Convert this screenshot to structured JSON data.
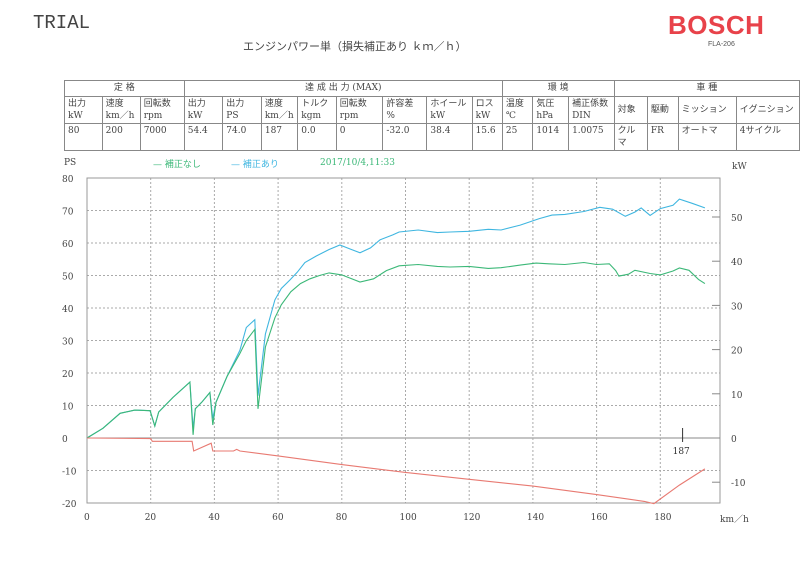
{
  "header": {
    "watermark": "TRIAL",
    "title": "エンジンパワー単（損失補正あり ｋｍ／ｈ）",
    "brand": "BOSCH",
    "model": "FLA-206"
  },
  "spec_table": {
    "groups": [
      {
        "label": "定 格",
        "span": 3
      },
      {
        "label": "達 成 出 力 (MAX)",
        "span": 8
      },
      {
        "label": "環 境",
        "span": 3
      },
      {
        "label": "車 種",
        "span": 4
      }
    ],
    "headers": [
      [
        "出力",
        "kW"
      ],
      [
        "速度",
        "km／h"
      ],
      [
        "回転数",
        "rpm"
      ],
      [
        "出力",
        "kW"
      ],
      [
        "出力",
        "PS"
      ],
      [
        "速度",
        "km／h"
      ],
      [
        "トルク",
        "kgm"
      ],
      [
        "回転数",
        "rpm"
      ],
      [
        "許容差",
        "%"
      ],
      [
        "ホイール",
        "kW"
      ],
      [
        "ロス",
        "kW"
      ],
      [
        "温度",
        "℃"
      ],
      [
        "気圧",
        "hPa"
      ],
      [
        "補正係数",
        "DIN"
      ],
      [
        "対象",
        ""
      ],
      [
        "駆動",
        ""
      ],
      [
        "ミッション",
        ""
      ],
      [
        "イグニション",
        ""
      ]
    ],
    "values": [
      "80",
      "200",
      "7000",
      "54.4",
      "74.0",
      "187",
      "0.0",
      "0",
      "-32.0",
      "38.4",
      "15.6",
      "25",
      "1014",
      "1.0075",
      "クルマ",
      "FR",
      "オートマ",
      "4サイクル"
    ]
  },
  "chart_data": {
    "type": "line",
    "title": "",
    "timestamp": "2017/10/4,11:33",
    "xlabel": "km／h",
    "ylabel": "PS",
    "y2label": "kW",
    "xlim": [
      0,
      200
    ],
    "ylim": [
      -20,
      80
    ],
    "y2lim": [
      -14.7,
      58.8
    ],
    "xticks": [
      0,
      20,
      40,
      60,
      80,
      100,
      120,
      140,
      160,
      180
    ],
    "yticks": [
      80,
      70,
      60,
      50,
      40,
      30,
      20,
      10,
      0,
      -10,
      -20
    ],
    "y2ticks": [
      50,
      40,
      30,
      20,
      10,
      0,
      -10
    ],
    "grid": true,
    "legend": [
      {
        "name": "補正なし",
        "color": "#3cb878"
      },
      {
        "name": "補正あり",
        "color": "#3fb6e0"
      }
    ],
    "marker": {
      "x": 187,
      "label": "187"
    },
    "series": [
      {
        "name": "補正あり",
        "color": "#3fb6e0",
        "points": [
          [
            0,
            0
          ],
          [
            5,
            3
          ],
          [
            10.4,
            7.6
          ],
          [
            15,
            8.6
          ],
          [
            19.8,
            8.4
          ],
          [
            21.3,
            3.7
          ],
          [
            22.5,
            8
          ],
          [
            27,
            12.5
          ],
          [
            32.3,
            17.2
          ],
          [
            33.3,
            3
          ],
          [
            34,
            9
          ],
          [
            36,
            11
          ],
          [
            38.6,
            14
          ],
          [
            39.5,
            6
          ],
          [
            40.5,
            11
          ],
          [
            44,
            19
          ],
          [
            48,
            27
          ],
          [
            50,
            34
          ],
          [
            52.7,
            36.4
          ],
          [
            53.7,
            13
          ],
          [
            56,
            32
          ],
          [
            59,
            42.5
          ],
          [
            61,
            46
          ],
          [
            63.7,
            48.6
          ],
          [
            66,
            51
          ],
          [
            68.4,
            54
          ],
          [
            72,
            56
          ],
          [
            76,
            58
          ],
          [
            79.4,
            59.4
          ],
          [
            83,
            58
          ],
          [
            85.7,
            57
          ],
          [
            89,
            58.5
          ],
          [
            92,
            61
          ],
          [
            96,
            62.5
          ],
          [
            98,
            63.4
          ],
          [
            104,
            64
          ],
          [
            110,
            63.2
          ],
          [
            114,
            63.4
          ],
          [
            120,
            63.6
          ],
          [
            126,
            64.2
          ],
          [
            130,
            64
          ],
          [
            136,
            65.5
          ],
          [
            142,
            67.5
          ],
          [
            146,
            68.6
          ],
          [
            150,
            68.8
          ],
          [
            156,
            69.7
          ],
          [
            161,
            71
          ],
          [
            165,
            70.4
          ],
          [
            169,
            68.2
          ],
          [
            172,
            69.5
          ],
          [
            174,
            70.8
          ],
          [
            176.8,
            68.5
          ],
          [
            180,
            70.6
          ],
          [
            184,
            71.6
          ],
          [
            186,
            73.5
          ],
          [
            190,
            72.2
          ],
          [
            194,
            70.8
          ]
        ]
      },
      {
        "name": "補正なし",
        "color": "#3cb878",
        "points": [
          [
            0,
            0
          ],
          [
            5,
            3
          ],
          [
            10.4,
            7.6
          ],
          [
            15,
            8.6
          ],
          [
            19.8,
            8.4
          ],
          [
            21.3,
            3.7
          ],
          [
            22.5,
            8
          ],
          [
            27,
            12.5
          ],
          [
            32.3,
            17.2
          ],
          [
            33.3,
            1
          ],
          [
            34,
            9
          ],
          [
            36,
            11
          ],
          [
            38.6,
            14
          ],
          [
            39.5,
            4
          ],
          [
            40.5,
            11
          ],
          [
            44,
            19
          ],
          [
            48,
            26
          ],
          [
            50,
            30
          ],
          [
            52.7,
            33.4
          ],
          [
            53.7,
            9
          ],
          [
            56,
            28
          ],
          [
            59,
            37
          ],
          [
            61,
            41
          ],
          [
            64,
            45
          ],
          [
            67,
            47.5
          ],
          [
            70,
            49
          ],
          [
            73,
            50
          ],
          [
            76,
            50.8
          ],
          [
            80,
            50.2
          ],
          [
            85.7,
            48
          ],
          [
            90,
            49
          ],
          [
            94,
            51.5
          ],
          [
            98,
            53
          ],
          [
            104,
            53.4
          ],
          [
            110,
            52.8
          ],
          [
            114,
            52.6
          ],
          [
            120,
            52.8
          ],
          [
            126,
            52.2
          ],
          [
            130,
            52.4
          ],
          [
            136,
            53.2
          ],
          [
            141,
            53.8
          ],
          [
            145,
            53.6
          ],
          [
            150,
            53.4
          ],
          [
            156,
            54
          ],
          [
            160,
            53.4
          ],
          [
            164,
            53.6
          ],
          [
            166,
            51.5
          ],
          [
            167,
            49.8
          ],
          [
            170,
            50.4
          ],
          [
            172,
            51.6
          ],
          [
            176.8,
            50.6
          ],
          [
            180,
            50.2
          ],
          [
            184,
            51.4
          ],
          [
            186,
            52.3
          ],
          [
            189,
            51.6
          ],
          [
            192,
            48.8
          ],
          [
            194,
            47.5
          ]
        ]
      },
      {
        "name": "ロス",
        "color": "#e87a72",
        "points": [
          [
            0,
            0
          ],
          [
            20,
            -0.2
          ],
          [
            20.5,
            -1
          ],
          [
            33,
            -1
          ],
          [
            33.5,
            -4
          ],
          [
            39,
            -1.6
          ],
          [
            39.5,
            -4
          ],
          [
            46,
            -4
          ],
          [
            47,
            -3.5
          ],
          [
            48,
            -4
          ],
          [
            60,
            -5.5
          ],
          [
            80,
            -8.2
          ],
          [
            100,
            -10.6
          ],
          [
            120,
            -12.7
          ],
          [
            140,
            -14.8
          ],
          [
            160,
            -17.4
          ],
          [
            175,
            -19.5
          ],
          [
            178,
            -20.2
          ],
          [
            186,
            -14.5
          ],
          [
            194,
            -9.5
          ]
        ]
      }
    ]
  }
}
